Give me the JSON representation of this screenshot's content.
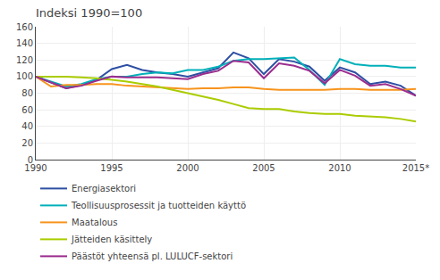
{
  "chart_data": {
    "type": "line",
    "title": "Indeksi 1990=100",
    "x": [
      1990,
      1991,
      1992,
      1993,
      1994,
      1995,
      1996,
      1997,
      1998,
      1999,
      2000,
      2001,
      2002,
      2003,
      2004,
      2005,
      2006,
      2007,
      2008,
      2009,
      2010,
      2011,
      2012,
      2013,
      2014,
      2015
    ],
    "xlim": [
      1990,
      2015
    ],
    "xticks": [
      1990,
      1995,
      2000,
      2005,
      2010,
      {
        "value": 2015,
        "label": "2015*"
      }
    ],
    "ylim": [
      0,
      160
    ],
    "yticks": [
      0,
      20,
      40,
      60,
      80,
      100,
      120,
      140,
      160
    ],
    "grid": true,
    "legend": "bottom",
    "series": [
      {
        "name": "Energiasektori",
        "color": "#2E4FA3",
        "values": [
          100,
          93,
          86,
          90,
          96,
          109,
          114,
          108,
          105,
          103,
          100,
          105,
          110,
          129,
          122,
          103,
          121,
          118,
          112,
          95,
          111,
          105,
          91,
          94,
          89,
          77
        ]
      },
      {
        "name": "Teollisuusprosessit ja tuotteiden käyttö",
        "color": "#00B0B9",
        "values": [
          100,
          94,
          88,
          91,
          97,
          100,
          100,
          103,
          105,
          104,
          108,
          108,
          112,
          119,
          121,
          121,
          122,
          123,
          108,
          90,
          121,
          115,
          113,
          113,
          111,
          111
        ]
      },
      {
        "name": "Maatalous",
        "color": "#F7941D",
        "values": [
          100,
          88,
          90,
          90,
          91,
          91,
          89,
          88,
          87,
          86,
          85,
          86,
          86,
          87,
          87,
          85,
          84,
          84,
          84,
          84,
          85,
          85,
          84,
          84,
          84,
          85
        ]
      },
      {
        "name": "Jätteiden käsittely",
        "color": "#AACC00",
        "values": [
          100,
          100,
          100,
          99,
          98,
          96,
          94,
          91,
          88,
          84,
          80,
          76,
          72,
          67,
          62,
          61,
          61,
          58,
          56,
          55,
          55,
          53,
          52,
          51,
          49,
          46
        ]
      },
      {
        "name": "Päästöt yhteensä pl. LULUCF-sektori",
        "color": "#9B2D8E",
        "values": [
          100,
          93,
          86,
          89,
          95,
          100,
          99,
          99,
          99,
          98,
          97,
          103,
          107,
          119,
          117,
          98,
          116,
          113,
          107,
          92,
          108,
          101,
          89,
          91,
          85,
          77
        ]
      }
    ]
  }
}
